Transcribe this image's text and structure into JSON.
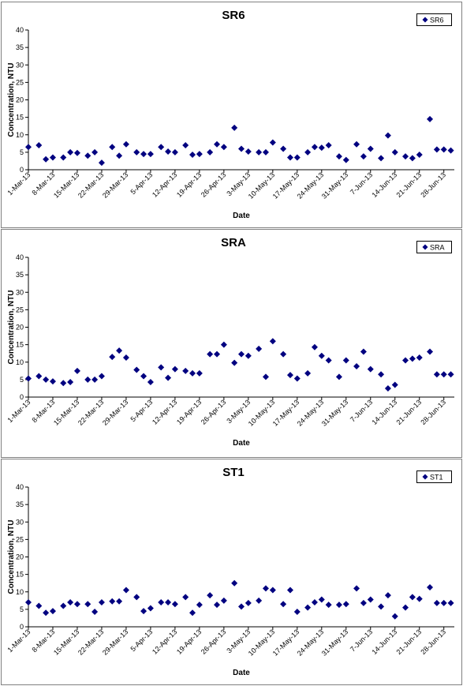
{
  "style": {
    "marker_color": "#000080",
    "marker": "diamond"
  },
  "chart_data": [
    {
      "type": "scatter",
      "title": "SR6",
      "xlabel": "Date",
      "ylabel": "Concentration, NTU",
      "ylim": [
        0,
        40
      ],
      "yticks": [
        0,
        5,
        10,
        15,
        20,
        25,
        30,
        35,
        40
      ],
      "xticks": [
        "1-Mar-13",
        "8-Mar-13",
        "15-Mar-13",
        "22-Mar-13",
        "29-Mar-13",
        "5-Apr-13",
        "12-Apr-13",
        "19-Apr-13",
        "26-Apr-13",
        "3-May-13",
        "10-May-13",
        "17-May-13",
        "24-May-13",
        "31-May-13",
        "7-Jun-13",
        "14-Jun-13",
        "21-Jun-13",
        "28-Jun-13"
      ],
      "xlim": [
        "1-Mar-13",
        "30-Jun-13"
      ],
      "legend": {
        "position": "top-right",
        "entries": [
          "SR6"
        ]
      },
      "series": [
        {
          "name": "SR6",
          "x_days": [
            0,
            3,
            5,
            7,
            10,
            12,
            14,
            17,
            19,
            21,
            24,
            26,
            28,
            31,
            33,
            35,
            38,
            40,
            42,
            45,
            47,
            49,
            52,
            54,
            56,
            59,
            61,
            63,
            66,
            68,
            70,
            73,
            75,
            77,
            80,
            82,
            84,
            86,
            89,
            91,
            94,
            96,
            98,
            101,
            103,
            105,
            108,
            110,
            112,
            115,
            117,
            119,
            121
          ],
          "values": [
            6.5,
            7.0,
            3.0,
            3.5,
            3.5,
            5.0,
            4.8,
            4.0,
            5.0,
            2.0,
            6.5,
            4.0,
            7.3,
            5.0,
            4.5,
            4.5,
            6.5,
            5.2,
            5.0,
            7.0,
            4.3,
            4.5,
            5.0,
            7.3,
            6.5,
            12.0,
            6.0,
            5.2,
            5.0,
            5.0,
            7.8,
            6.0,
            3.5,
            3.5,
            5.0,
            6.5,
            6.3,
            7.0,
            3.8,
            2.8,
            7.3,
            3.8,
            6.0,
            3.3,
            9.8,
            5.0,
            3.8,
            3.3,
            4.3,
            14.5,
            5.8,
            5.8,
            5.5
          ]
        }
      ]
    },
    {
      "type": "scatter",
      "title": "SRA",
      "xlabel": "Date",
      "ylabel": "Concentration, NTU",
      "ylim": [
        0,
        40
      ],
      "yticks": [
        0,
        5,
        10,
        15,
        20,
        25,
        30,
        35,
        40
      ],
      "xticks": [
        "1-Mar-13",
        "8-Mar-13",
        "15-Mar-13",
        "22-Mar-13",
        "29-Mar-13",
        "5-Apr-13",
        "12-Apr-13",
        "19-Apr-13",
        "26-Apr-13",
        "3-May-13",
        "10-May-13",
        "17-May-13",
        "24-May-13",
        "31-May-13",
        "7-Jun-13",
        "14-Jun-13",
        "21-Jun-13",
        "28-Jun-13"
      ],
      "xlim": [
        "1-Mar-13",
        "30-Jun-13"
      ],
      "legend": {
        "position": "top-right",
        "entries": [
          "SRA"
        ]
      },
      "series": [
        {
          "name": "SRA",
          "x_days": [
            0,
            3,
            5,
            7,
            10,
            12,
            14,
            17,
            19,
            21,
            24,
            26,
            28,
            31,
            33,
            35,
            38,
            40,
            42,
            45,
            47,
            49,
            52,
            54,
            56,
            59,
            61,
            63,
            66,
            68,
            70,
            73,
            75,
            77,
            80,
            82,
            84,
            86,
            89,
            91,
            94,
            96,
            98,
            101,
            103,
            105,
            108,
            110,
            112,
            115,
            117,
            119,
            121
          ],
          "values": [
            5.3,
            6.0,
            5.0,
            4.5,
            4.0,
            4.3,
            7.5,
            5.0,
            5.0,
            6.0,
            11.5,
            13.3,
            11.3,
            7.8,
            6.0,
            4.3,
            8.5,
            5.5,
            8.0,
            7.5,
            6.8,
            6.8,
            12.3,
            12.3,
            15.0,
            9.8,
            12.3,
            11.8,
            13.8,
            5.8,
            16.0,
            12.3,
            6.3,
            5.3,
            6.8,
            14.3,
            11.8,
            10.5,
            5.8,
            10.5,
            8.8,
            13.0,
            8.0,
            6.5,
            2.5,
            3.5,
            10.5,
            11.0,
            11.3,
            13.0,
            6.5,
            6.5,
            6.5
          ]
        }
      ]
    },
    {
      "type": "scatter",
      "title": "ST1",
      "xlabel": "Date",
      "ylabel": "Concentration, NTU",
      "ylim": [
        0,
        40
      ],
      "yticks": [
        0,
        5,
        10,
        15,
        20,
        25,
        30,
        35,
        40
      ],
      "xticks": [
        "1-Mar-13",
        "8-Mar-13",
        "15-Mar-13",
        "22-Mar-13",
        "29-Mar-13",
        "5-Apr-13",
        "12-Apr-13",
        "19-Apr-13",
        "26-Apr-13",
        "3-May-13",
        "10-May-13",
        "17-May-13",
        "24-May-13",
        "31-May-13",
        "7-Jun-13",
        "14-Jun-13",
        "21-Jun-13",
        "28-Jun-13"
      ],
      "xlim": [
        "1-Mar-13",
        "30-Jun-13"
      ],
      "legend": {
        "position": "top-right",
        "entries": [
          "ST1"
        ]
      },
      "series": [
        {
          "name": "ST1",
          "x_days": [
            0,
            3,
            5,
            7,
            10,
            12,
            14,
            17,
            19,
            21,
            24,
            26,
            28,
            31,
            33,
            35,
            38,
            40,
            42,
            45,
            47,
            49,
            52,
            54,
            56,
            59,
            61,
            63,
            66,
            68,
            70,
            73,
            75,
            77,
            80,
            82,
            84,
            86,
            89,
            91,
            94,
            96,
            98,
            101,
            103,
            105,
            108,
            110,
            112,
            115,
            117,
            119,
            121
          ],
          "values": [
            7.0,
            6.0,
            4.0,
            4.5,
            6.0,
            7.0,
            6.5,
            6.5,
            4.3,
            7.0,
            7.3,
            7.3,
            10.5,
            8.5,
            4.5,
            5.3,
            7.0,
            7.0,
            6.5,
            8.5,
            4.0,
            6.3,
            9.0,
            6.3,
            7.5,
            12.5,
            5.8,
            6.8,
            7.5,
            11.0,
            10.5,
            6.5,
            10.5,
            4.3,
            5.5,
            7.0,
            7.8,
            6.3,
            6.3,
            6.5,
            11.0,
            6.8,
            7.8,
            5.8,
            9.0,
            3.0,
            5.5,
            8.5,
            8.0,
            11.3,
            6.8,
            6.8,
            6.8
          ]
        }
      ]
    }
  ]
}
